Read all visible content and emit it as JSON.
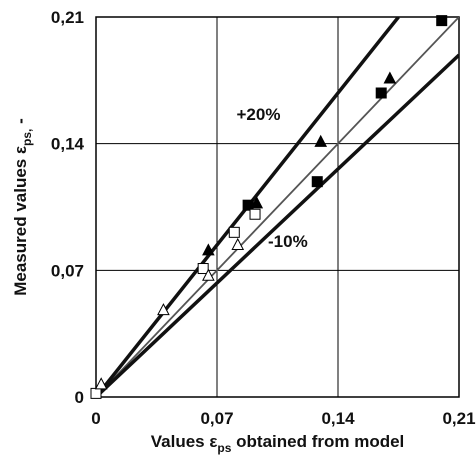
{
  "chart_data": {
    "type": "scatter",
    "xlabel": {
      "prefix": "Values ε",
      "sub": "ps",
      "suffix": " obtained from model"
    },
    "ylabel": {
      "prefix": "Measured values ε",
      "sub": "ps,",
      "suffix": " -"
    },
    "xlim": [
      0,
      0.21
    ],
    "ylim": [
      0,
      0.21
    ],
    "grid": true,
    "ticks": {
      "x": [
        {
          "value": 0,
          "label": "0"
        },
        {
          "value": 0.07,
          "label": "0,07"
        },
        {
          "value": 0.14,
          "label": "0,14"
        },
        {
          "value": 0.21,
          "label": "0,21"
        }
      ],
      "y": [
        {
          "value": 0,
          "label": "0"
        },
        {
          "value": 0.07,
          "label": "0,07"
        },
        {
          "value": 0.14,
          "label": "0,14"
        },
        {
          "value": 0.21,
          "label": "0,21"
        }
      ]
    },
    "reference_lines": [
      {
        "slope": 1.0,
        "style": "thin"
      },
      {
        "slope": 1.2,
        "style": "thick",
        "label": "+20%"
      },
      {
        "slope": 0.9,
        "style": "thick",
        "label": "-10%"
      }
    ],
    "series": [
      {
        "marker": "filled-square",
        "points": [
          [
            0.088,
            0.106
          ],
          [
            0.128,
            0.119
          ],
          [
            0.165,
            0.168
          ],
          [
            0.2,
            0.208
          ]
        ]
      },
      {
        "marker": "filled-triangle",
        "points": [
          [
            0.065,
            0.081
          ],
          [
            0.093,
            0.107
          ],
          [
            0.13,
            0.141
          ],
          [
            0.17,
            0.176
          ]
        ]
      },
      {
        "marker": "open-square",
        "points": [
          [
            0.0,
            0.002
          ],
          [
            0.062,
            0.071
          ],
          [
            0.08,
            0.091
          ],
          [
            0.092,
            0.101
          ]
        ]
      },
      {
        "marker": "open-triangle",
        "points": [
          [
            0.003,
            0.007
          ],
          [
            0.039,
            0.048
          ],
          [
            0.065,
            0.067
          ],
          [
            0.082,
            0.084
          ]
        ]
      }
    ]
  }
}
